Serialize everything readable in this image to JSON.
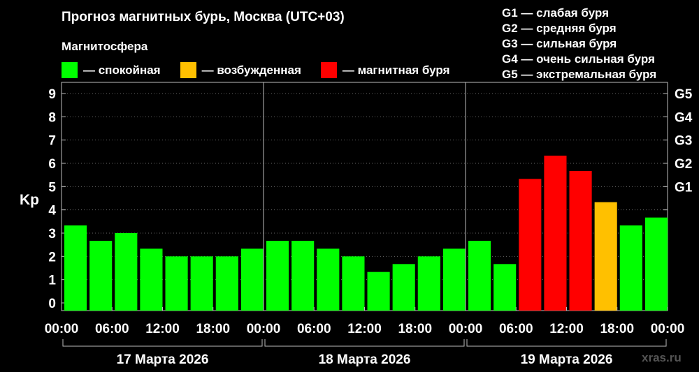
{
  "title": "Прогноз магнитных бурь, Москва (UTC+03)",
  "legend": {
    "heading": "Магнитосфера",
    "items": [
      {
        "label": "— спокойная",
        "color": "#00ff00"
      },
      {
        "label": "— возбужденная",
        "color": "#ffc000"
      },
      {
        "label": "— магнитная буря",
        "color": "#ff0000"
      }
    ]
  },
  "g_scale": [
    "G1 — слабая буря",
    "G2 — средняя буря",
    "G3 — сильная буря",
    "G4 — очень сильная буря",
    "G5 — экстремальная буря"
  ],
  "watermark": "xras.ru",
  "chart_data": {
    "type": "bar",
    "ylabel": "Kp",
    "ylim": [
      0,
      9
    ],
    "yticks": [
      0,
      1,
      2,
      3,
      4,
      5,
      6,
      7,
      8,
      9
    ],
    "right_ticks": [
      {
        "kp": 5,
        "label": "G1"
      },
      {
        "kp": 6,
        "label": "G2"
      },
      {
        "kp": 7,
        "label": "G3"
      },
      {
        "kp": 8,
        "label": "G4"
      },
      {
        "kp": 9,
        "label": "G5"
      }
    ],
    "xtick_labels": [
      "00:00",
      "06:00",
      "12:00",
      "18:00",
      "00:00",
      "06:00",
      "12:00",
      "18:00",
      "00:00",
      "06:00",
      "12:00",
      "18:00",
      "00:00"
    ],
    "days": [
      "17 Марта 2026",
      "18 Марта 2026",
      "19 Марта 2026"
    ],
    "bars_per_day": 8,
    "values": [
      3.33,
      2.67,
      3.0,
      2.33,
      2.0,
      2.0,
      2.0,
      2.33,
      2.67,
      2.67,
      2.33,
      2.0,
      1.33,
      1.67,
      2.0,
      2.33,
      2.67,
      1.67,
      5.33,
      6.33,
      5.67,
      4.33,
      3.33,
      3.67
    ],
    "levels": [
      "quiet",
      "quiet",
      "quiet",
      "quiet",
      "quiet",
      "quiet",
      "quiet",
      "quiet",
      "quiet",
      "quiet",
      "quiet",
      "quiet",
      "quiet",
      "quiet",
      "quiet",
      "quiet",
      "quiet",
      "quiet",
      "storm",
      "storm",
      "storm",
      "active",
      "quiet",
      "quiet"
    ],
    "level_colors": {
      "quiet": "#00ff00",
      "active": "#ffc000",
      "storm": "#ff0000"
    },
    "grid": "dotted horizontal at integer Kp",
    "legend_position": "top"
  }
}
